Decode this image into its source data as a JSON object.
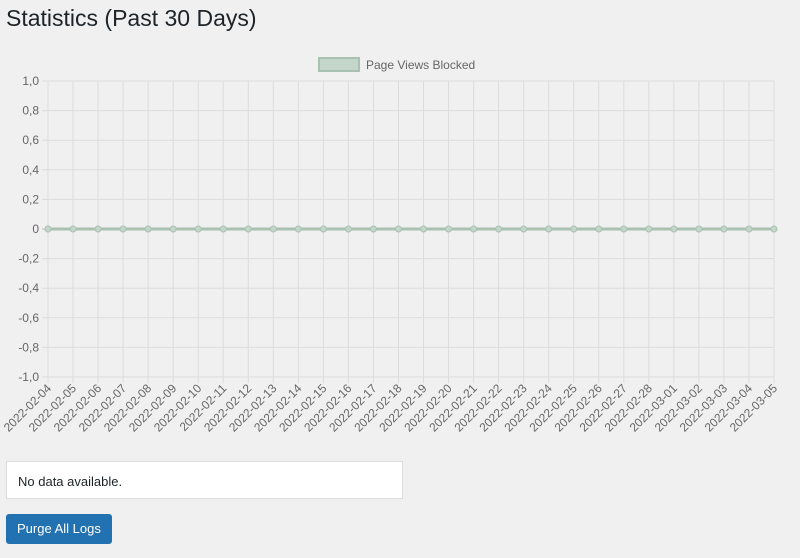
{
  "page": {
    "title": "Statistics (Past 30 Days)"
  },
  "chart_data": {
    "type": "line",
    "legend": {
      "label": "Page Views Blocked",
      "position": "top"
    },
    "x": [
      "2022-02-04",
      "2022-02-05",
      "2022-02-06",
      "2022-02-07",
      "2022-02-08",
      "2022-02-09",
      "2022-02-10",
      "2022-02-11",
      "2022-02-12",
      "2022-02-13",
      "2022-02-14",
      "2022-02-15",
      "2022-02-16",
      "2022-02-17",
      "2022-02-18",
      "2022-02-19",
      "2022-02-20",
      "2022-02-21",
      "2022-02-22",
      "2022-02-23",
      "2022-02-24",
      "2022-02-25",
      "2022-02-26",
      "2022-02-27",
      "2022-02-28",
      "2022-03-01",
      "2022-03-02",
      "2022-03-03",
      "2022-03-04",
      "2022-03-05"
    ],
    "series": [
      {
        "name": "Page Views Blocked",
        "values": [
          0,
          0,
          0,
          0,
          0,
          0,
          0,
          0,
          0,
          0,
          0,
          0,
          0,
          0,
          0,
          0,
          0,
          0,
          0,
          0,
          0,
          0,
          0,
          0,
          0,
          0,
          0,
          0,
          0,
          0
        ]
      }
    ],
    "yticks": [
      "1,0",
      "0,8",
      "0,6",
      "0,4",
      "0,2",
      "0",
      "-0,2",
      "-0,4",
      "-0,6",
      "-0,8",
      "-1,0"
    ],
    "ylim": [
      -1,
      1
    ],
    "grid": true,
    "colors": {
      "fill": "#c4d6c9",
      "line": "#a9c1b1",
      "grid": "#dcdcdc"
    }
  },
  "notice": {
    "text": "No data available."
  },
  "actions": {
    "purge_label": "Purge All Logs"
  }
}
